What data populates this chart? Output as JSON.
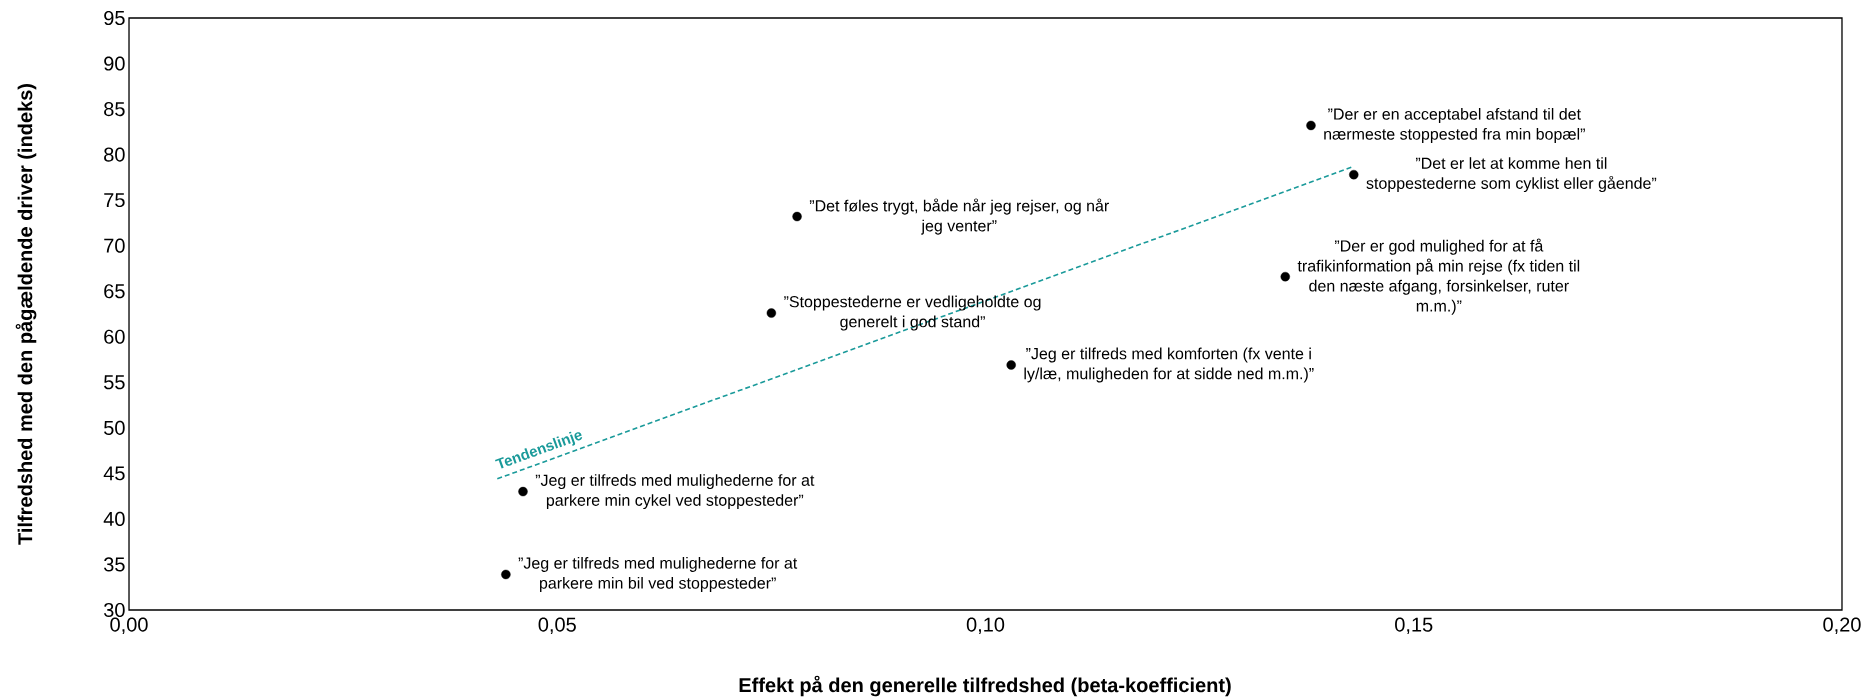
{
  "chart_data": {
    "type": "scatter",
    "xlabel": "Effekt på den generelle tilfredshed (beta-koefficient)",
    "ylabel": "Tilfredshed med den pågældende driver (indeks)",
    "xlim": [
      0,
      0.2
    ],
    "ylim": [
      30,
      95
    ],
    "xticks": [
      {
        "value": 0,
        "label": "0,00"
      },
      {
        "value": 0.05,
        "label": "0,05"
      },
      {
        "value": 0.1,
        "label": "0,10"
      },
      {
        "value": 0.15,
        "label": "0,15"
      },
      {
        "value": 0.2,
        "label": "0,20"
      }
    ],
    "yticks": [
      30,
      35,
      40,
      45,
      50,
      55,
      60,
      65,
      70,
      75,
      80,
      85,
      90,
      95
    ],
    "series": [
      {
        "color": "#000000",
        "x": [
          0.138,
          0.143,
          0.078,
          0.075,
          0.135,
          0.103,
          0.046,
          0.044
        ],
        "values": [
          83.2,
          77.8,
          73.2,
          62.6,
          66.6,
          56.9,
          43.0,
          33.9
        ]
      },
      {
        "type": "line",
        "name": "Tendenslinje",
        "color": "#1a9a9a",
        "line_style": "dashed",
        "x": [
          0.043,
          0.143
        ],
        "values": [
          44.4,
          78.7
        ]
      }
    ],
    "annotations": [
      {
        "text": "”Der er en acceptabel afstand til det nærmeste stoppested fra min bopæl”",
        "x": 0.138,
        "y": 83.2
      },
      {
        "text": "”Det er let at komme hen til stoppestederne som cyklist eller gående”",
        "x": 0.143,
        "y": 77.8
      },
      {
        "text": "”Det føles trygt, både når jeg rejser, og når jeg venter”",
        "x": 0.078,
        "y": 73.2
      },
      {
        "text": "”Stoppestederne er vedligeholdte og generelt i god stand”",
        "x": 0.075,
        "y": 62.6
      },
      {
        "text": "”Der er god mulighed for at få trafikinformation på min rejse (fx tiden til den næste afgang, forsinkelser, ruter m.m.)”",
        "x": 0.135,
        "y": 66.6
      },
      {
        "text": "”Jeg er tilfreds med komforten (fx vente i ly/læ, muligheden for at sidde ned m.m.)”",
        "x": 0.103,
        "y": 56.9
      },
      {
        "text": "”Jeg er tilfreds med mulighederne for at parkere min cykel ved stoppesteder”",
        "x": 0.046,
        "y": 43.0
      },
      {
        "text": "”Jeg er tilfreds med mulighederne for at parkere min bil ved stoppesteder”",
        "x": 0.044,
        "y": 33.9
      }
    ]
  }
}
